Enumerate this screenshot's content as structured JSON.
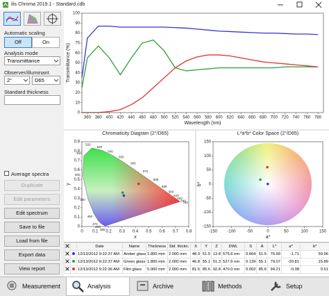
{
  "window": {
    "title": "ilis Chroma 2019.1 - Standard.cdb"
  },
  "sidebar": {
    "automatic_scaling": "Automatic scaling",
    "scaling_off": "Off",
    "scaling_on": "On",
    "analysis_mode_label": "Analysis mode",
    "analysis_mode": "Transmittance",
    "observer_label": "Observer/illuminant",
    "observer": "2°",
    "illuminant": "D65",
    "thickness_label": "Standard thickness",
    "average_spectra": "Average spectra",
    "buttons": [
      "Duplicate",
      "Edit parameters",
      "Edit spectrum",
      "Save to file",
      "Load from file",
      "Export data",
      "View report"
    ]
  },
  "chart_data": [
    {
      "type": "line",
      "y_label": "Transmittance (%)",
      "x_label": "Wavelength (nm)",
      "x": [
        350,
        360,
        380,
        400,
        420,
        440,
        460,
        480,
        500,
        520,
        540,
        560,
        580,
        600,
        620,
        640,
        660,
        680,
        700,
        720,
        740,
        760,
        780
      ],
      "series": [
        {
          "color": "#3535d8",
          "values": [
            35,
            75,
            87,
            87,
            86,
            86,
            86,
            86,
            86,
            85.5,
            85,
            84,
            83,
            82,
            81.5,
            81,
            80.5,
            80,
            80,
            79.5,
            79,
            79,
            78.5
          ]
        },
        {
          "color": "#2e9e3a",
          "values": [
            25,
            55,
            67,
            55,
            38,
            55,
            70,
            73,
            62,
            45,
            42,
            43,
            44,
            45,
            45,
            45,
            45,
            45,
            45,
            46,
            46,
            46,
            46
          ]
        },
        {
          "color": "#e03232",
          "values": [
            0,
            0,
            0,
            1,
            3,
            8,
            15,
            25,
            35,
            45,
            52,
            56,
            58,
            58,
            57,
            55,
            53,
            51,
            50,
            49,
            48,
            47,
            46
          ]
        }
      ],
      "xlim": [
        350,
        790
      ],
      "ylim": [
        0,
        100
      ],
      "xticks": [
        360,
        380,
        400,
        420,
        440,
        460,
        480,
        500,
        520,
        540,
        560,
        580,
        600,
        620,
        640,
        660,
        680,
        700,
        720,
        740,
        760,
        780
      ],
      "yticks": [
        0,
        10,
        20,
        30,
        40,
        50,
        60,
        70,
        80,
        90,
        100
      ],
      "grid": false
    },
    {
      "type": "scatter",
      "title": "Chromaticity Diagram (2°/D65)",
      "x_label": "x",
      "y_label": "y",
      "xlim": [
        0,
        0.8
      ],
      "ylim": [
        0,
        0.9
      ],
      "xticks": [
        0,
        0.1,
        0.2,
        0.3,
        0.4,
        0.5,
        0.6,
        0.7,
        0.8
      ],
      "yticks": [
        0,
        0.1,
        0.2,
        0.3,
        0.4,
        0.5,
        0.6,
        0.7,
        0.8,
        0.9
      ],
      "locus": [
        {
          "label": "380",
          "x": 0.174,
          "y": 0.005
        },
        {
          "label": "460",
          "x": 0.144,
          "y": 0.03
        },
        {
          "label": "470",
          "x": 0.124,
          "y": 0.058
        },
        {
          "label": "480",
          "x": 0.091,
          "y": 0.133
        },
        {
          "label": "490",
          "x": 0.045,
          "y": 0.295
        },
        {
          "label": "500",
          "x": 0.008,
          "y": 0.538
        },
        {
          "label": "510",
          "x": 0.014,
          "y": 0.75
        },
        {
          "label": "520",
          "x": 0.074,
          "y": 0.834
        },
        {
          "label": "530",
          "x": 0.155,
          "y": 0.806
        },
        {
          "label": "540",
          "x": 0.23,
          "y": 0.754
        },
        {
          "label": "550",
          "x": 0.302,
          "y": 0.692
        },
        {
          "label": "560",
          "x": 0.373,
          "y": 0.625
        },
        {
          "label": "570",
          "x": 0.444,
          "y": 0.555
        },
        {
          "label": "580",
          "x": 0.513,
          "y": 0.487
        },
        {
          "label": "590",
          "x": 0.575,
          "y": 0.424
        },
        {
          "label": "600",
          "x": 0.627,
          "y": 0.373
        },
        {
          "label": "610",
          "x": 0.666,
          "y": 0.334
        },
        {
          "label": "620",
          "x": 0.692,
          "y": 0.308
        },
        {
          "label": "640",
          "x": 0.719,
          "y": 0.281
        },
        {
          "label": "780",
          "x": 0.735,
          "y": 0.265
        }
      ],
      "series": [
        {
          "color": "#e03232",
          "x": [
            0.425
          ],
          "values": [
            0.453
          ]
        },
        {
          "color": "#2e9e3a",
          "x": [
            0.305
          ],
          "values": [
            0.36
          ]
        },
        {
          "color": "#3535d8",
          "x": [
            0.314
          ],
          "values": [
            0.329
          ]
        }
      ]
    },
    {
      "type": "scatter",
      "title": "L*a*b* Color Space (2°/D65)",
      "x_label": "a*",
      "y_label": "b*",
      "xlim": [
        -150,
        150
      ],
      "ylim": [
        -150,
        150
      ],
      "xticks": [
        -150,
        -100,
        -50,
        0,
        50,
        100,
        150
      ],
      "yticks": [
        -150,
        -100,
        -50,
        0,
        50,
        100,
        150
      ],
      "color_wheel": true,
      "series": [
        {
          "color": "#e03232",
          "x": [
            -1.71
          ],
          "values": [
            59.96
          ]
        },
        {
          "color": "#2e9e3a",
          "x": [
            -20.81
          ],
          "values": [
            15.89
          ]
        },
        {
          "color": "#3535d8",
          "x": [
            -0.38
          ],
          "values": [
            0.51
          ]
        }
      ]
    }
  ],
  "table": {
    "headers": [
      "Date",
      "Name",
      "Thickness",
      "Std. thickn.",
      "X",
      "Y",
      "Z",
      "DWL",
      "S",
      "A",
      "L*",
      "a*",
      "b*"
    ],
    "rows": [
      [
        "12/13/2012 9:22:37 AM",
        "Amber glass",
        "1.800 mm",
        "2.000 mm",
        48.3,
        51.5,
        13.8,
        "575.6 nm",
        0.664,
        51.5,
        76.99,
        -1.71,
        59.96
      ],
      [
        "12/13/2012 9:22:37 AM",
        "Green glass",
        "1.800 mm",
        "2.000 mm",
        46.8,
        55.1,
        51.3,
        "527.6 nm",
        0.139,
        55.1,
        79.07,
        -20.81,
        15.89
      ],
      [
        "12/13/2012 9:22:36 AM",
        "Flint glass",
        "5.900 mm",
        "2.000 mm",
        81.5,
        85.6,
        92.8,
        "470.0 nm",
        0.002,
        85.6,
        94.21,
        -0.38,
        0.51
      ]
    ]
  },
  "tabs": [
    "Measurement",
    "Analysis",
    "Archive",
    "Methods",
    "Setup"
  ]
}
